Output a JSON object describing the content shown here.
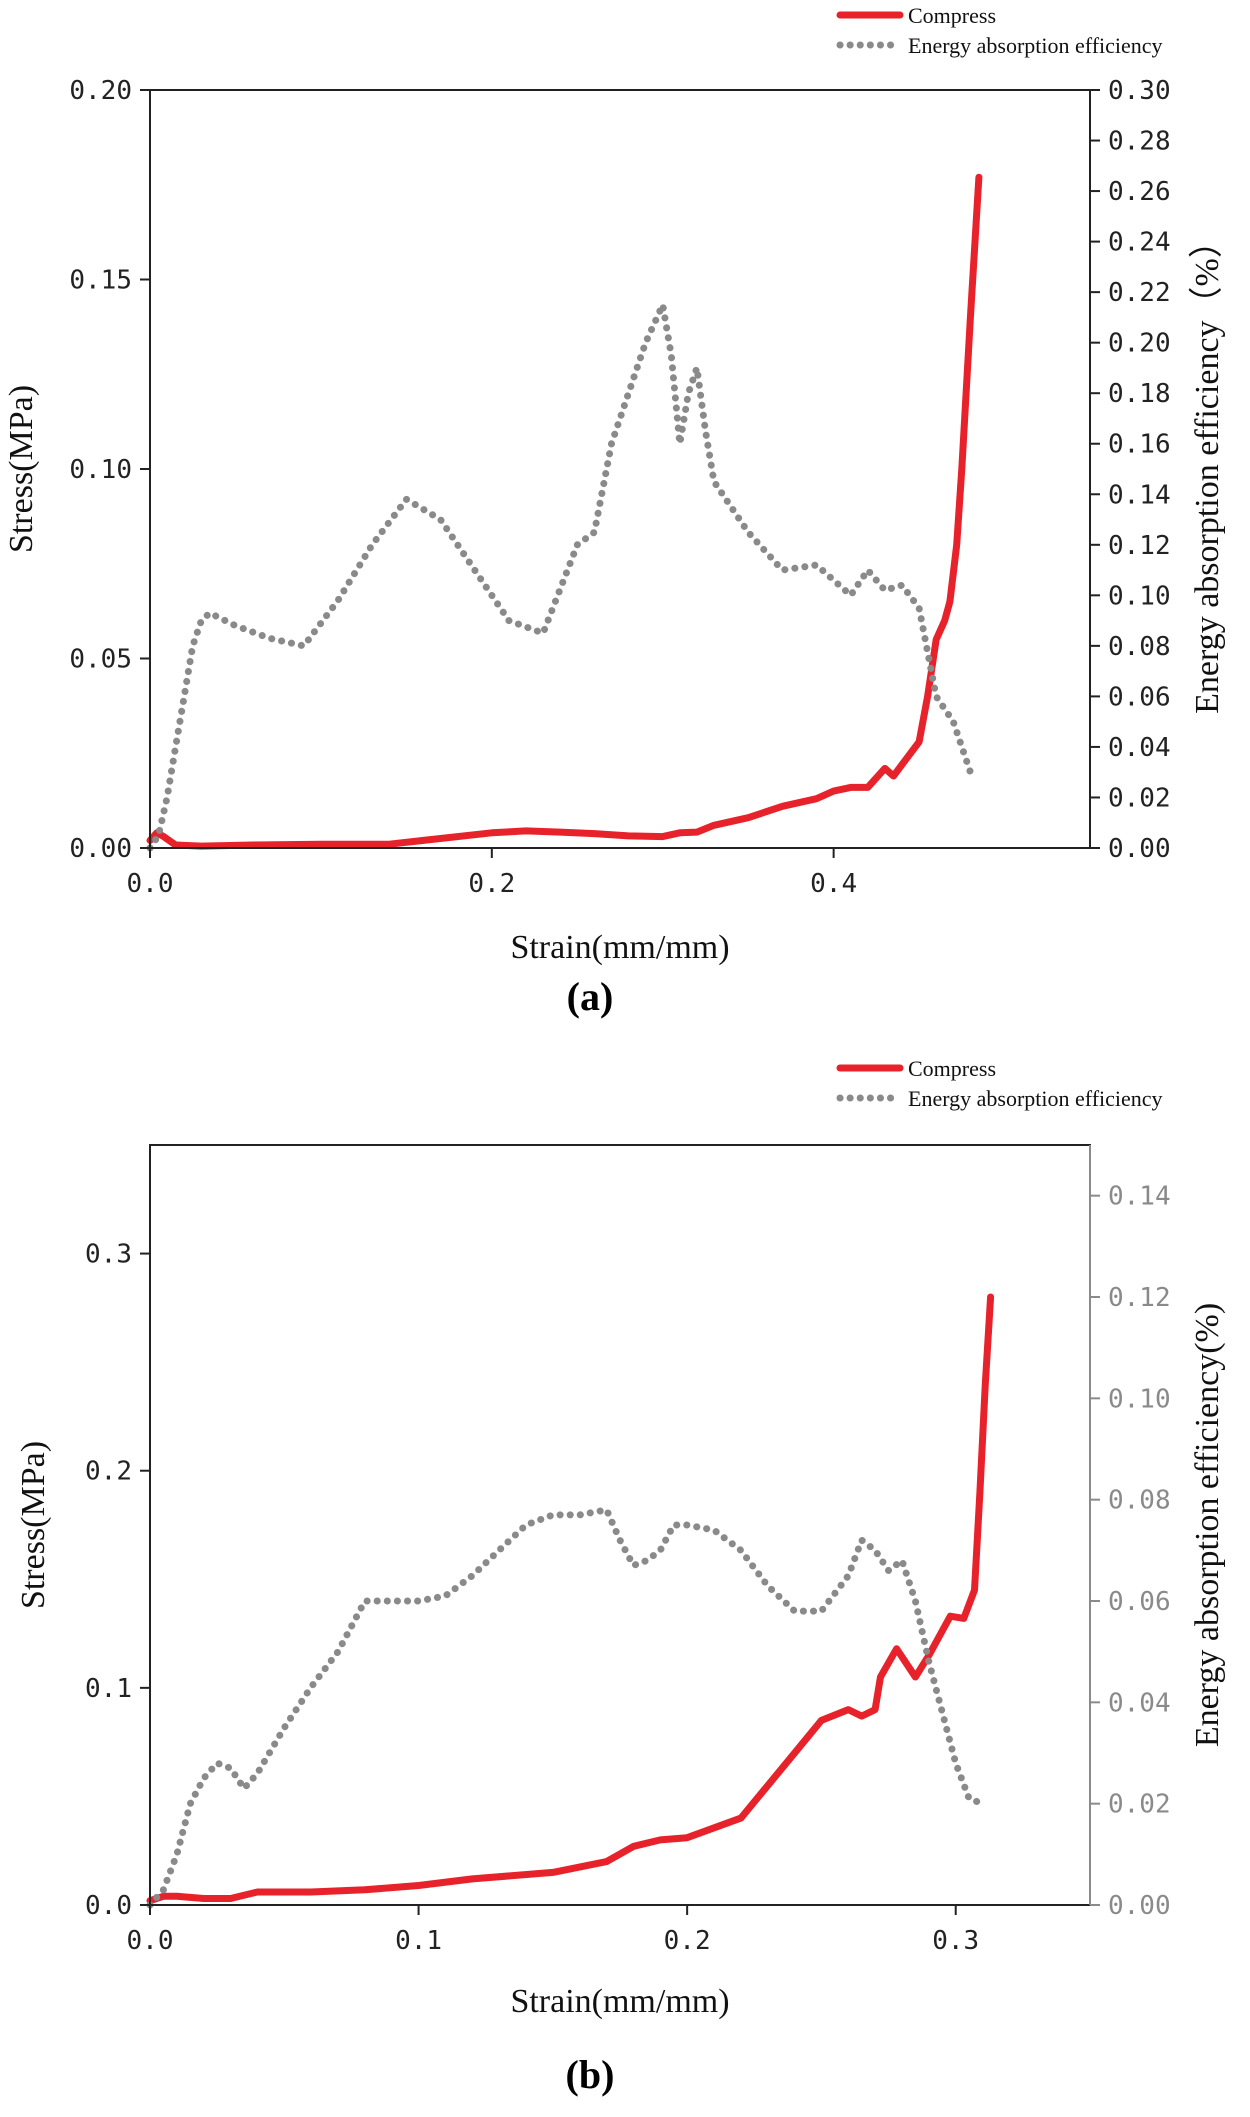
{
  "chart_data": [
    {
      "type": "line",
      "panel_label": "(a)",
      "xlabel": "Strain(mm/mm)",
      "ylabel": "Stress(MPa)",
      "y2label": "Energy absorption efficiency（%）",
      "xlim": [
        0,
        0.55
      ],
      "ylim": [
        0,
        0.2
      ],
      "y2lim": [
        0,
        0.3
      ],
      "x_ticks": [
        0.0,
        0.2,
        0.4
      ],
      "x_tick_labels": [
        "0.0",
        "0.2",
        "0.4"
      ],
      "y_ticks": [
        0.0,
        0.05,
        0.1,
        0.15,
        0.2
      ],
      "y_tick_labels": [
        "0.00",
        "0.05",
        "0.10",
        "0.15",
        "0.20"
      ],
      "y2_ticks": [
        0.0,
        0.02,
        0.04,
        0.06,
        0.08,
        0.1,
        0.12,
        0.14,
        0.16,
        0.18,
        0.2,
        0.22,
        0.24,
        0.26,
        0.28,
        0.3
      ],
      "y2_tick_labels": [
        "0.00",
        "0.02",
        "0.04",
        "0.06",
        "0.08",
        "0.10",
        "0.12",
        "0.14",
        "0.16",
        "0.18",
        "0.20",
        "0.22",
        "0.24",
        "0.26",
        "0.28",
        "0.30"
      ],
      "y2_color": "#222222",
      "legend_position": "top-right",
      "series": [
        {
          "name": "Compress",
          "axis": "left",
          "color": "#e8222a",
          "style": "solid",
          "x": [
            0.0,
            0.004,
            0.008,
            0.015,
            0.03,
            0.06,
            0.1,
            0.14,
            0.16,
            0.2,
            0.22,
            0.24,
            0.26,
            0.28,
            0.3,
            0.31,
            0.32,
            0.33,
            0.35,
            0.37,
            0.39,
            0.4,
            0.41,
            0.42,
            0.43,
            0.435,
            0.44,
            0.45,
            0.455,
            0.46,
            0.465,
            0.468,
            0.472,
            0.475,
            0.48,
            0.485
          ],
          "values": [
            0.002,
            0.004,
            0.003,
            0.0008,
            0.0005,
            0.0008,
            0.001,
            0.001,
            0.002,
            0.004,
            0.0045,
            0.0042,
            0.0038,
            0.0032,
            0.003,
            0.004,
            0.0042,
            0.006,
            0.008,
            0.011,
            0.013,
            0.015,
            0.016,
            0.016,
            0.021,
            0.019,
            0.022,
            0.028,
            0.04,
            0.055,
            0.06,
            0.065,
            0.08,
            0.1,
            0.14,
            0.177
          ]
        },
        {
          "name": "Energy absorption efficiency",
          "axis": "right",
          "color": "#8a8a8a",
          "style": "dotted",
          "x": [
            0.0,
            0.005,
            0.01,
            0.015,
            0.02,
            0.025,
            0.03,
            0.035,
            0.05,
            0.07,
            0.09,
            0.11,
            0.13,
            0.15,
            0.17,
            0.19,
            0.21,
            0.23,
            0.25,
            0.26,
            0.27,
            0.28,
            0.29,
            0.3,
            0.305,
            0.31,
            0.315,
            0.32,
            0.325,
            0.33,
            0.35,
            0.37,
            0.39,
            0.41,
            0.42,
            0.43,
            0.44,
            0.45,
            0.46,
            0.47,
            0.48
          ],
          "values": [
            0.0,
            0.005,
            0.02,
            0.04,
            0.06,
            0.08,
            0.09,
            0.093,
            0.088,
            0.083,
            0.08,
            0.098,
            0.12,
            0.138,
            0.13,
            0.11,
            0.09,
            0.085,
            0.12,
            0.125,
            0.16,
            0.18,
            0.2,
            0.215,
            0.195,
            0.16,
            0.18,
            0.19,
            0.165,
            0.145,
            0.125,
            0.11,
            0.112,
            0.1,
            0.11,
            0.102,
            0.104,
            0.095,
            0.06,
            0.05,
            0.03
          ]
        }
      ]
    },
    {
      "type": "line",
      "panel_label": "(b)",
      "xlabel": "Strain(mm/mm)",
      "ylabel": "Stress(MPa)",
      "y2label": "Energy absorption efficiency(%)",
      "xlim": [
        0,
        0.35
      ],
      "ylim": [
        0,
        0.35
      ],
      "y2lim": [
        0,
        0.15
      ],
      "x_ticks": [
        0.0,
        0.1,
        0.2,
        0.3
      ],
      "x_tick_labels": [
        "0.0",
        "0.1",
        "0.2",
        "0.3"
      ],
      "y_ticks": [
        0.0,
        0.1,
        0.2,
        0.3
      ],
      "y_tick_labels": [
        "0.0",
        "0.1",
        "0.2",
        "0.3"
      ],
      "y2_ticks": [
        0.0,
        0.02,
        0.04,
        0.06,
        0.08,
        0.1,
        0.12,
        0.14
      ],
      "y2_tick_labels": [
        "0.00",
        "0.02",
        "0.04",
        "0.06",
        "0.08",
        "0.10",
        "0.12",
        "0.14"
      ],
      "y2_color": "#8a8a8a",
      "legend_position": "top-right",
      "series": [
        {
          "name": "Compress",
          "axis": "left",
          "color": "#e8222a",
          "style": "solid",
          "x": [
            0.0,
            0.005,
            0.01,
            0.02,
            0.03,
            0.04,
            0.06,
            0.08,
            0.1,
            0.12,
            0.15,
            0.17,
            0.18,
            0.19,
            0.2,
            0.22,
            0.23,
            0.24,
            0.25,
            0.26,
            0.265,
            0.27,
            0.272,
            0.278,
            0.285,
            0.29,
            0.298,
            0.303,
            0.307,
            0.309,
            0.311,
            0.313
          ],
          "values": [
            0.002,
            0.004,
            0.004,
            0.003,
            0.003,
            0.006,
            0.006,
            0.007,
            0.009,
            0.012,
            0.015,
            0.02,
            0.027,
            0.03,
            0.031,
            0.04,
            0.055,
            0.07,
            0.085,
            0.09,
            0.087,
            0.09,
            0.105,
            0.118,
            0.105,
            0.115,
            0.133,
            0.132,
            0.145,
            0.19,
            0.24,
            0.28
          ]
        },
        {
          "name": "Energy absorption efficiency",
          "axis": "right",
          "color": "#8a8a8a",
          "style": "dotted",
          "x": [
            0.0,
            0.005,
            0.01,
            0.015,
            0.02,
            0.025,
            0.03,
            0.035,
            0.04,
            0.05,
            0.06,
            0.07,
            0.08,
            0.09,
            0.1,
            0.11,
            0.12,
            0.13,
            0.14,
            0.15,
            0.16,
            0.17,
            0.175,
            0.18,
            0.185,
            0.19,
            0.195,
            0.2,
            0.21,
            0.22,
            0.23,
            0.24,
            0.25,
            0.26,
            0.265,
            0.27,
            0.275,
            0.28,
            0.285,
            0.29,
            0.3,
            0.305,
            0.31
          ],
          "values": [
            0.0,
            0.003,
            0.01,
            0.02,
            0.025,
            0.028,
            0.027,
            0.023,
            0.026,
            0.035,
            0.043,
            0.05,
            0.06,
            0.06,
            0.06,
            0.061,
            0.065,
            0.07,
            0.075,
            0.077,
            0.077,
            0.078,
            0.072,
            0.067,
            0.068,
            0.07,
            0.075,
            0.075,
            0.074,
            0.07,
            0.063,
            0.058,
            0.058,
            0.065,
            0.072,
            0.07,
            0.066,
            0.068,
            0.06,
            0.048,
            0.028,
            0.021,
            0.02
          ]
        }
      ]
    }
  ]
}
